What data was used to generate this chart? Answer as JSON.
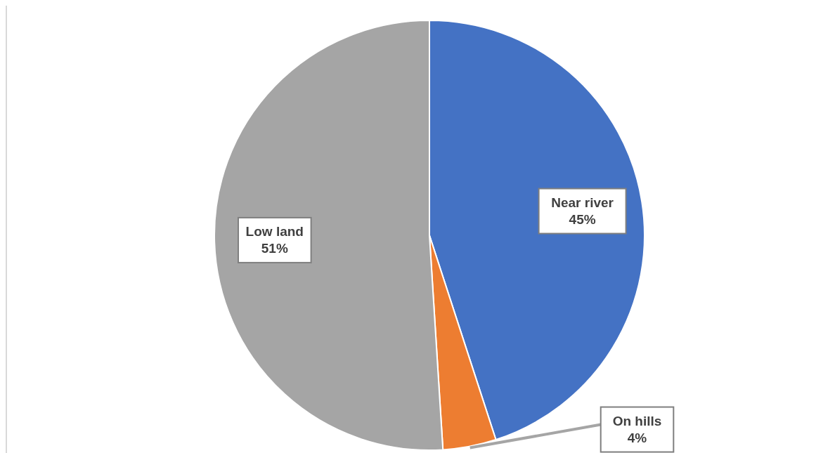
{
  "chart_data": {
    "type": "pie",
    "categories": [
      "Near river",
      "On hills",
      "Low land"
    ],
    "values": [
      45,
      4,
      51
    ],
    "colors": [
      "#4472c4",
      "#ed7d31",
      "#a5a5a5"
    ],
    "value_labels": [
      "45%",
      "4%",
      "51%"
    ]
  }
}
